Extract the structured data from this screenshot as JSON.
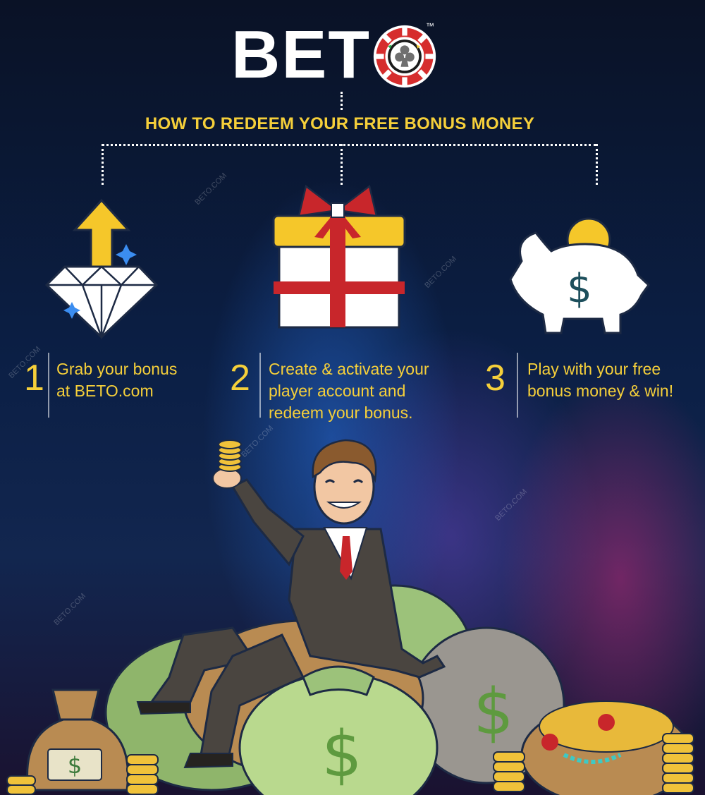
{
  "brand": {
    "logo_text": "BETO",
    "trademark": "™"
  },
  "heading": "HOW TO REDEEM YOUR FREE BONUS MONEY",
  "steps": [
    {
      "number": "1",
      "lines": [
        "Grab your bonus",
        "at BETO.com"
      ],
      "icon": "diamond-arrow-icon"
    },
    {
      "number": "2",
      "lines": [
        "Create & activate your",
        "player account and",
        "redeem your bonus."
      ],
      "icon": "gift-box-icon"
    },
    {
      "number": "3",
      "lines": [
        "Play with your free",
        "bonus money & win!"
      ],
      "icon": "piggy-bank-icon"
    }
  ],
  "watermark_text": "BETO.COM",
  "colors": {
    "accent_yellow": "#f5cf3a",
    "chip_red": "#d62d2d",
    "gift_red": "#c8262b",
    "money_green": "#6fa64a"
  }
}
